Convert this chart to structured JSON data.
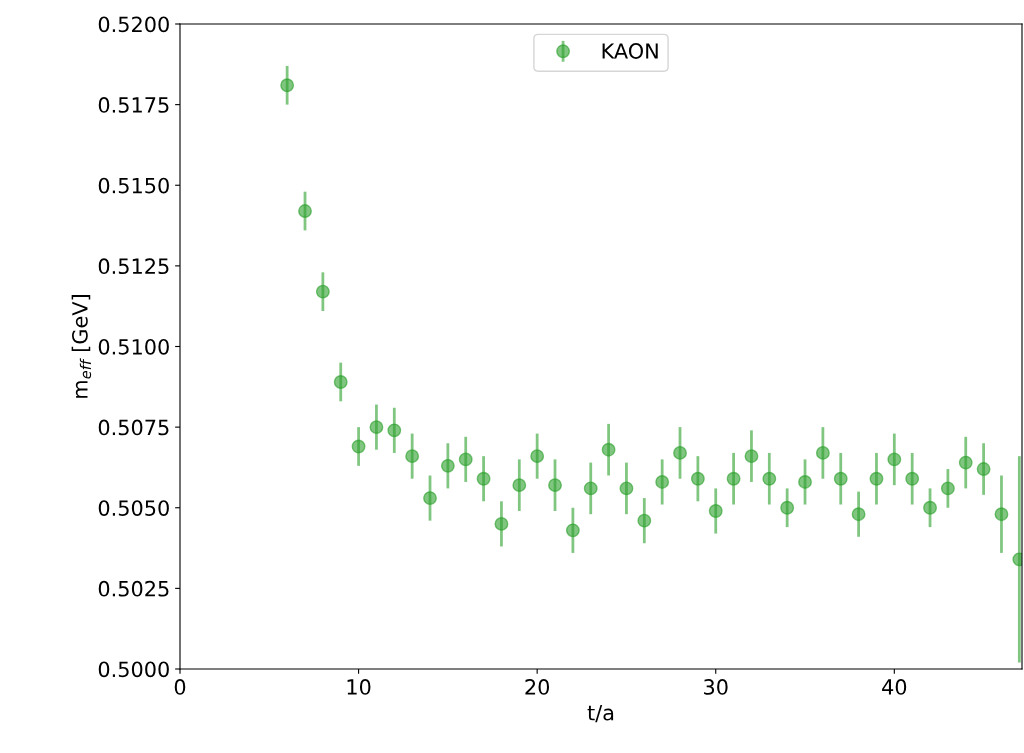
{
  "chart_data": {
    "type": "scatter",
    "xlabel": "t/a",
    "ylabel": "m$_{eff}$ [GeV]",
    "x": [
      6,
      7,
      8,
      9,
      10,
      11,
      12,
      13,
      14,
      15,
      16,
      17,
      18,
      19,
      20,
      21,
      22,
      23,
      24,
      25,
      26,
      27,
      28,
      29,
      30,
      31,
      32,
      33,
      34,
      35,
      36,
      37,
      38,
      39,
      40,
      41,
      42,
      43,
      44,
      45,
      46,
      47
    ],
    "series": [
      {
        "name": "KAON",
        "color": "#2ca02c",
        "values": [
          0.5181,
          0.5142,
          0.5117,
          0.5089,
          0.5069,
          0.5075,
          0.5074,
          0.5066,
          0.5053,
          0.5063,
          0.5065,
          0.5059,
          0.5045,
          0.5057,
          0.5066,
          0.5057,
          0.5043,
          0.5056,
          0.5068,
          0.5056,
          0.5046,
          0.5058,
          0.5067,
          0.5059,
          0.5049,
          0.5059,
          0.5066,
          0.5059,
          0.505,
          0.5058,
          0.5067,
          0.5059,
          0.5048,
          0.5059,
          0.5065,
          0.5059,
          0.505,
          0.5056,
          0.5064,
          0.5062,
          0.5048,
          0.5034
        ],
        "errors": [
          0.0006,
          0.0006,
          0.0006,
          0.0006,
          0.0006,
          0.0007,
          0.0007,
          0.0007,
          0.0007,
          0.0007,
          0.0007,
          0.0007,
          0.0007,
          0.0008,
          0.0007,
          0.0008,
          0.0007,
          0.0008,
          0.0008,
          0.0008,
          0.0007,
          0.0007,
          0.0008,
          0.0007,
          0.0007,
          0.0008,
          0.0008,
          0.0008,
          0.0006,
          0.0007,
          0.0008,
          0.0008,
          0.0007,
          0.0008,
          0.0008,
          0.0008,
          0.0006,
          0.0006,
          0.0008,
          0.0008,
          0.0012,
          0.0032
        ]
      }
    ],
    "xlim": [
      0,
      47.15
    ],
    "xticks": [
      0,
      10,
      20,
      30,
      40
    ],
    "ylim": [
      0.5,
      0.52
    ],
    "yticks": [
      {
        "value": 0.5,
        "label": "0.5000"
      },
      {
        "value": 0.5025,
        "label": "0.5025"
      },
      {
        "value": 0.505,
        "label": "0.5050"
      },
      {
        "value": 0.5075,
        "label": "0.5075"
      },
      {
        "value": 0.51,
        "label": "0.5100"
      },
      {
        "value": 0.5125,
        "label": "0.5125"
      },
      {
        "value": 0.515,
        "label": "0.5150"
      },
      {
        "value": 0.5175,
        "label": "0.5175"
      },
      {
        "value": 0.52,
        "label": "0.5200"
      }
    ],
    "marker": "circle",
    "legend": "top",
    "grid": false
  }
}
